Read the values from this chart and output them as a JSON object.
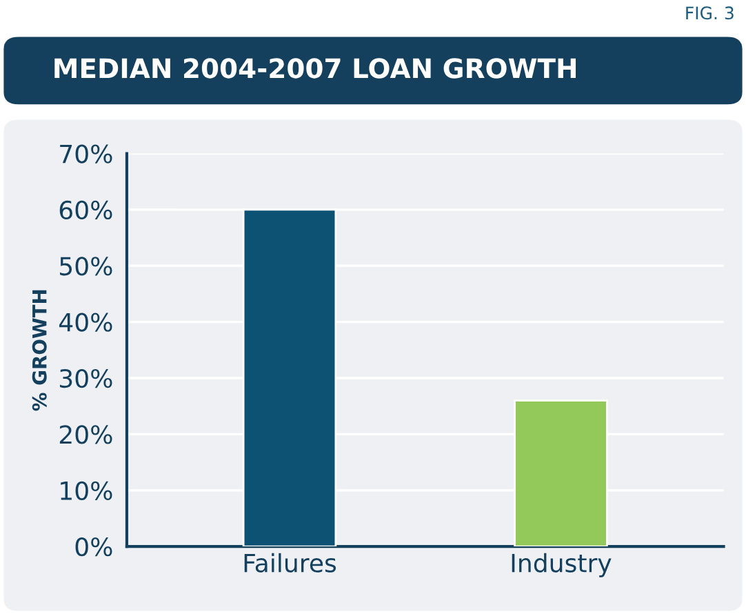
{
  "chart_data": {
    "type": "bar",
    "title": "MEDIAN 2004-2007 LOAN GROWTH",
    "ylabel": "% GROWTH",
    "annotations": [
      "FIG. 3"
    ],
    "categories": [
      "Failures",
      "Industry"
    ],
    "values": [
      60,
      26
    ],
    "colors": [
      "#0d5273",
      "#92c95a"
    ],
    "ylim": [
      0,
      70
    ],
    "yticks": [
      {
        "value": 0,
        "label": "0%"
      },
      {
        "value": 10,
        "label": "10%"
      },
      {
        "value": 20,
        "label": "20%"
      },
      {
        "value": 30,
        "label": "30%"
      },
      {
        "value": 40,
        "label": "40%"
      },
      {
        "value": 50,
        "label": "50%"
      },
      {
        "value": 60,
        "label": "60%"
      },
      {
        "value": 70,
        "label": "70%"
      }
    ],
    "grid": "y"
  }
}
